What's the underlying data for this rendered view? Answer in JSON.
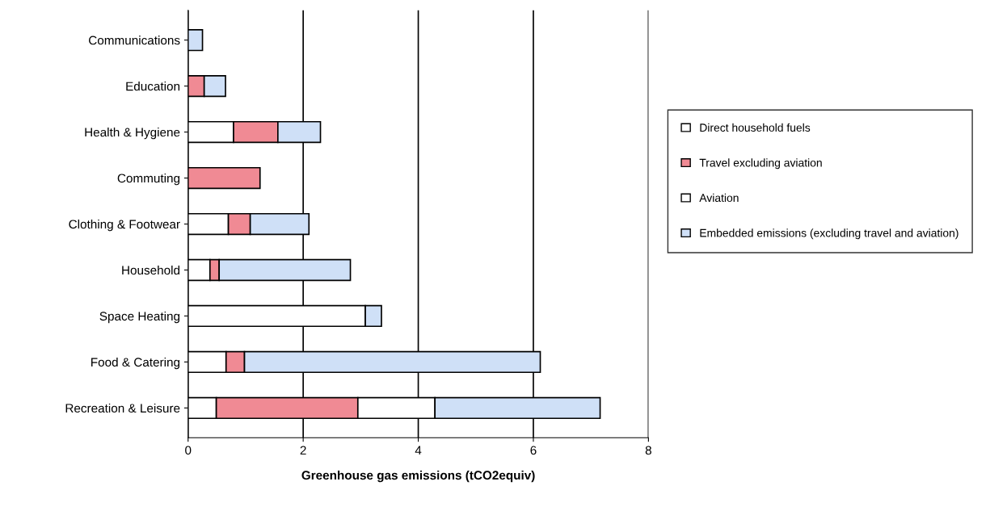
{
  "chart_data": {
    "type": "bar",
    "orientation": "horizontal",
    "stacked": true,
    "categories": [
      "Communications",
      "Education",
      "Health & Hygiene",
      "Commuting",
      "Clothing & Footwear",
      "Household",
      "Space Heating",
      "Food & Catering",
      "Recreation & Leisure"
    ],
    "series": [
      {
        "name": "Direct household fuels",
        "color": "#ffffff",
        "values": [
          0,
          0,
          0.79,
          0,
          0.7,
          0.38,
          3.08,
          0.66,
          0.49
        ]
      },
      {
        "name": "Travel excluding aviation",
        "color": "#f08a94",
        "values": [
          0,
          0.28,
          0.77,
          1.25,
          0.38,
          0.16,
          0,
          0.32,
          2.46
        ]
      },
      {
        "name": "Aviation",
        "color": "#ffffff",
        "values": [
          0,
          0,
          0,
          0,
          0,
          0,
          0,
          0,
          1.34
        ]
      },
      {
        "name": "Embedded emissions (excluding travel and aviation)",
        "color": "#cfe0f7",
        "values": [
          0.25,
          0.37,
          0.74,
          0,
          1.02,
          2.28,
          0.28,
          5.14,
          2.87
        ]
      }
    ],
    "xlabel": "Greenhouse gas emissions (tCO2equiv)",
    "xlim": [
      0,
      8
    ],
    "xticks": [
      0,
      2,
      4,
      6,
      8
    ],
    "grid": "x",
    "legend": "right"
  }
}
